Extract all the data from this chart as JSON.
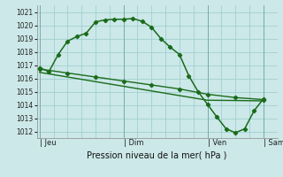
{
  "xlabel": "Pression niveau de la mer( hPa )",
  "background_color": "#cce8e8",
  "grid_color": "#99cccc",
  "line_color": "#1a6b1a",
  "ylim": [
    1011.5,
    1021.5
  ],
  "yticks": [
    1012,
    1013,
    1014,
    1015,
    1016,
    1017,
    1018,
    1019,
    1020,
    1021
  ],
  "xtick_labels": [
    "| Jeu",
    "| Dim",
    "| Ven",
    "| Sam"
  ],
  "xtick_positions": [
    0,
    9,
    18,
    24
  ],
  "xlim": [
    -0.3,
    25.5
  ],
  "line1_x": [
    0,
    1,
    2,
    3,
    4,
    5,
    6,
    7,
    8,
    9,
    10,
    11,
    12,
    13,
    14,
    15,
    16,
    17,
    18,
    19,
    20,
    21,
    22,
    23,
    24
  ],
  "line1_y": [
    1016.8,
    1016.5,
    1017.8,
    1018.8,
    1019.15,
    1019.4,
    1020.25,
    1020.4,
    1020.45,
    1020.45,
    1020.5,
    1020.3,
    1019.85,
    1019.0,
    1018.35,
    1017.8,
    1016.2,
    1015.0,
    1014.05,
    1013.1,
    1012.2,
    1011.9,
    1012.2,
    1013.55,
    1014.45
  ],
  "line2_x": [
    0,
    3,
    6,
    9,
    12,
    15,
    18,
    21,
    24
  ],
  "line2_y": [
    1016.7,
    1016.4,
    1016.1,
    1015.8,
    1015.5,
    1015.2,
    1014.8,
    1014.55,
    1014.4
  ],
  "line3_x": [
    0,
    3,
    6,
    9,
    12,
    15,
    18,
    21,
    24
  ],
  "line3_y": [
    1016.45,
    1016.1,
    1015.75,
    1015.4,
    1015.05,
    1014.7,
    1014.35,
    1014.33,
    1014.3
  ]
}
